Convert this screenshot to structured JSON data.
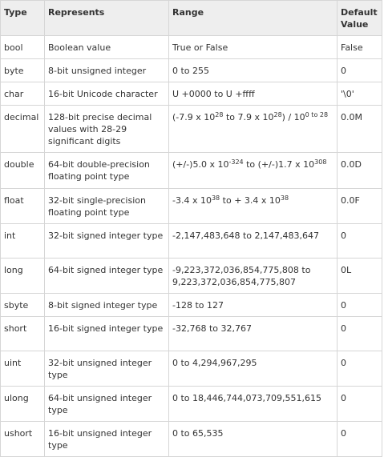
{
  "headers": {
    "type": "Type",
    "represents": "Represents",
    "range": "Range",
    "default_line1": "Default",
    "default_line2": "Value"
  },
  "rows": [
    {
      "type": "bool",
      "represents": "Boolean value",
      "range": "True or False",
      "default": "False"
    },
    {
      "type": "byte",
      "represents": "8-bit unsigned integer",
      "range": "0 to 255",
      "default": "0"
    },
    {
      "type": "char",
      "represents": "16-bit Unicode character",
      "range": "U +0000 to U +ffff",
      "default": "'\\0'"
    },
    {
      "type": "decimal",
      "represents": "128-bit precise decimal values with 28-29 significant digits",
      "range_parts": {
        "a": "(-7.9 x 10",
        "a_exp": "28",
        "b": " to 7.9 x 10",
        "b_exp": "28",
        "c": ") / 10",
        "c_exp": "0 to 28"
      },
      "default": "0.0M"
    },
    {
      "type": "double",
      "represents": "64-bit double-precision floating point type",
      "range_parts": {
        "a": "(+/-)5.0 x 10",
        "a_exp": "-324",
        "b": " to (+/-)1.7 x 10",
        "b_exp": "308"
      },
      "default": "0.0D"
    },
    {
      "type": "float",
      "represents": "32-bit single-precision floating point type",
      "range_parts": {
        "a": "-3.4 x 10",
        "a_exp": "38",
        "b": " to + 3.4 x 10",
        "b_exp": "38"
      },
      "default": "0.0F"
    },
    {
      "type": "int",
      "represents": "32-bit signed integer type",
      "range": "-2,147,483,648 to 2,147,483,647",
      "default": "0"
    },
    {
      "type": "long",
      "represents": "64-bit signed integer type",
      "range": "-9,223,372,036,854,775,808 to 9,223,372,036,854,775,807",
      "default": "0L"
    },
    {
      "type": "sbyte",
      "represents": "8-bit signed integer type",
      "range": "-128 to 127",
      "default": "0"
    },
    {
      "type": "short",
      "represents": "16-bit signed integer type",
      "range": "-32,768 to 32,767",
      "default": "0"
    },
    {
      "type": "uint",
      "represents": "32-bit unsigned integer type",
      "range": "0 to 4,294,967,295",
      "default": "0"
    },
    {
      "type": "ulong",
      "represents": "64-bit unsigned integer type",
      "range": "0 to 18,446,744,073,709,551,615",
      "default": "0"
    },
    {
      "type": "ushort",
      "represents": "16-bit unsigned integer type",
      "range": "0 to 65,535",
      "default": "0"
    }
  ]
}
